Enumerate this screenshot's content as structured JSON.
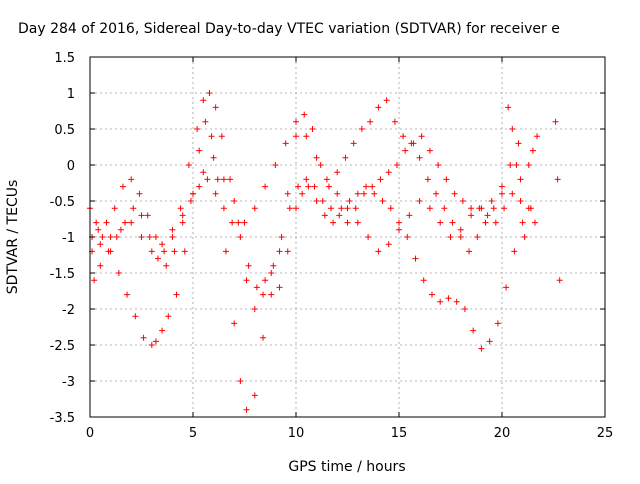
{
  "chart_data": {
    "type": "scatter",
    "title": "Day 284 of 2016, Sidereal Day-to-day VTEC variation (SDTVAR) for receiver e",
    "xlabel": "GPS time / hours",
    "ylabel": "SDTVAR / TECUs",
    "xlim": [
      0,
      25
    ],
    "ylim": [
      -3.5,
      1.5
    ],
    "x_ticks": [
      "0",
      "5",
      "10",
      "15",
      "20",
      "25"
    ],
    "y_ticks": [
      "1.5",
      "1",
      "0.5",
      "0",
      "-0.5",
      "-1",
      "-1.5",
      "-2",
      "-2.5",
      "-3",
      "-3.5"
    ],
    "grid": true,
    "marker": "+",
    "color": "#ff0000",
    "series": [
      {
        "x": [
          0.0,
          0.3,
          0.6,
          1.0,
          1.4,
          1.8,
          2.2,
          2.6,
          3.0,
          3.2,
          3.5,
          3.8,
          4.2,
          4.6,
          5.0,
          5.3,
          5.6,
          5.9,
          6.2,
          6.6,
          7.0,
          7.3,
          7.6,
          8.0,
          8.4,
          8.8,
          9.2,
          9.6,
          10.0,
          10.3,
          10.6,
          11.0,
          11.4,
          11.8,
          12.2,
          12.6,
          13.0,
          13.4,
          13.8,
          14.2,
          14.6,
          15.0,
          15.4,
          15.8,
          16.2,
          16.6,
          17.0,
          17.4,
          17.8,
          18.2,
          18.6,
          19.0,
          19.4,
          19.8,
          20.2,
          20.6,
          21.0,
          21.4
        ],
        "y": [
          -0.6,
          -0.8,
          -1.0,
          -1.2,
          -1.5,
          -1.8,
          -2.1,
          -2.4,
          -2.5,
          -2.45,
          -2.3,
          -2.1,
          -1.8,
          -1.2,
          -0.4,
          0.2,
          0.6,
          0.4,
          -0.2,
          -1.2,
          -2.2,
          -3.0,
          -3.4,
          -3.2,
          -2.4,
          -1.8,
          -1.7,
          -1.2,
          -0.6,
          -0.4,
          -0.3,
          -0.5,
          -0.7,
          -0.8,
          -0.6,
          -0.5,
          -0.4,
          -0.3,
          -0.4,
          -0.5,
          -0.6,
          -0.8,
          -1.0,
          -1.3,
          -1.6,
          -1.8,
          -1.9,
          -1.85,
          -1.9,
          -2.0,
          -2.3,
          -2.55,
          -2.45,
          -2.2,
          -1.7,
          -1.2,
          -0.8,
          -0.6
        ]
      },
      {
        "x": [
          0.1,
          0.4,
          0.8,
          1.2,
          1.6,
          2.0,
          2.4,
          2.8,
          3.2,
          3.6,
          4.0,
          4.4,
          4.8,
          5.2,
          5.5,
          5.8,
          6.1,
          6.4,
          6.8,
          7.2,
          7.6,
          8.0,
          8.4,
          8.8,
          9.2,
          9.6,
          10.0,
          10.4,
          10.8,
          11.2,
          11.6,
          12.0,
          12.4,
          12.8,
          13.2,
          13.6,
          14.0,
          14.4,
          14.8,
          15.2,
          15.6,
          16.0,
          16.4,
          16.8,
          17.2,
          17.6,
          18.0,
          18.4,
          18.8,
          19.2,
          19.6,
          20.0,
          20.4,
          20.8
        ],
        "y": [
          -1.0,
          -0.9,
          -0.8,
          -0.6,
          -0.3,
          -0.2,
          -0.4,
          -0.7,
          -1.0,
          -1.2,
          -1.0,
          -0.6,
          0.0,
          0.5,
          0.9,
          1.0,
          0.8,
          0.4,
          -0.2,
          -0.8,
          -1.6,
          -2.0,
          -1.8,
          -1.5,
          -1.2,
          -0.4,
          0.4,
          0.7,
          0.5,
          0.0,
          -0.3,
          -0.1,
          0.1,
          0.3,
          0.5,
          0.6,
          0.8,
          0.9,
          0.6,
          0.4,
          0.3,
          0.1,
          -0.2,
          -0.4,
          -0.6,
          -0.8,
          -1.0,
          -1.2,
          -1.0,
          -0.8,
          -0.6,
          -0.3,
          0.0,
          0.3
        ]
      },
      {
        "x": [
          0.2,
          0.5,
          0.9,
          1.3,
          1.7,
          2.1,
          2.5,
          2.9,
          3.3,
          3.7,
          4.1,
          4.5,
          4.9,
          5.3,
          5.7,
          6.1,
          6.5,
          6.9,
          7.3,
          7.7,
          8.1,
          8.5,
          8.9,
          9.3,
          9.7,
          10.1,
          10.5,
          10.9,
          11.3,
          11.7,
          12.1,
          12.5,
          12.9,
          13.3,
          13.7,
          14.1,
          14.5,
          14.9,
          15.3,
          15.7,
          16.1,
          16.5,
          16.9,
          17.3,
          17.7,
          18.1,
          18.5,
          18.9,
          19.3,
          19.7,
          20.1,
          20.5,
          20.9,
          21.3
        ],
        "y": [
          -1.6,
          -1.4,
          -1.2,
          -1.0,
          -0.8,
          -0.6,
          -0.7,
          -1.0,
          -1.3,
          -1.4,
          -1.2,
          -0.8,
          -0.5,
          -0.3,
          -0.2,
          -0.4,
          -0.6,
          -0.8,
          -1.0,
          -1.4,
          -1.7,
          -1.6,
          -1.4,
          -1.0,
          -0.6,
          -0.3,
          -0.2,
          -0.3,
          -0.5,
          -0.6,
          -0.7,
          -0.8,
          -0.6,
          -0.4,
          -0.3,
          -0.2,
          -0.1,
          0.0,
          0.2,
          0.3,
          0.4,
          0.2,
          0.0,
          -0.2,
          -0.4,
          -0.5,
          -0.6,
          -0.6,
          -0.7,
          -0.8,
          -0.6,
          -0.4,
          -0.2,
          0.0
        ]
      },
      {
        "x": [
          0.1,
          0.5,
          1.0,
          1.5,
          2.0,
          2.5,
          3.0,
          3.5,
          4.0,
          4.5,
          5.0,
          5.5,
          6.0,
          6.5,
          7.0,
          7.5,
          8.0,
          8.5,
          9.0,
          9.5,
          10.0,
          10.5,
          11.0,
          11.5,
          12.0,
          12.5,
          13.0,
          13.5,
          14.0,
          14.5,
          15.0,
          15.5,
          16.0,
          16.5,
          17.0,
          17.5,
          18.0,
          18.5,
          19.0,
          19.5,
          20.0
        ],
        "y": [
          -1.2,
          -1.1,
          -1.0,
          -0.9,
          -0.8,
          -1.0,
          -1.2,
          -1.1,
          -0.9,
          -0.7,
          -0.4,
          -0.1,
          0.1,
          -0.2,
          -0.5,
          -0.8,
          -0.6,
          -0.3,
          0.0,
          0.3,
          0.6,
          0.4,
          0.1,
          -0.2,
          -0.4,
          -0.6,
          -0.8,
          -1.0,
          -1.2,
          -1.1,
          -0.9,
          -0.7,
          -0.5,
          -0.6,
          -0.8,
          -1.0,
          -0.9,
          -0.7,
          -0.6,
          -0.5,
          -0.4
        ]
      },
      {
        "x": [
          20.3,
          20.5,
          20.7,
          20.9,
          21.1,
          21.3,
          21.5,
          21.6,
          21.7,
          22.6,
          22.7,
          22.8
        ],
        "y": [
          0.8,
          0.5,
          0.0,
          -0.5,
          -1.0,
          -0.6,
          0.2,
          -0.8,
          0.4,
          0.6,
          -0.2,
          -1.6
        ]
      }
    ]
  }
}
